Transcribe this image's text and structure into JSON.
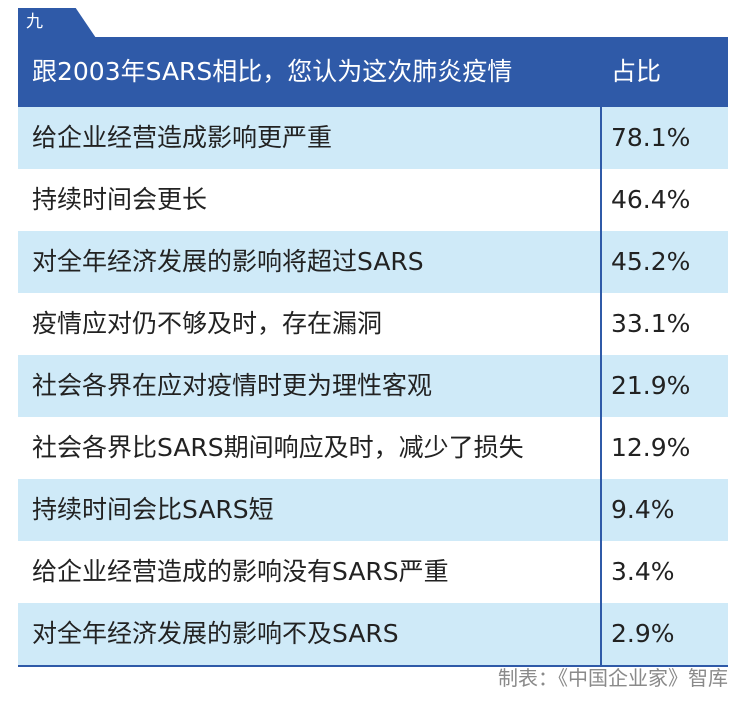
{
  "badge": {
    "label": "九"
  },
  "table": {
    "header_question": "跟2003年SARS相比，您认为这次肺炎疫情",
    "header_value": "占比",
    "rows": [
      {
        "label": "给企业经营造成影响更严重",
        "value": "78.1%"
      },
      {
        "label": "持续时间会更长",
        "value": "46.4%"
      },
      {
        "label": "对全年经济发展的影响将超过SARS",
        "value": "45.2%"
      },
      {
        "label": "疫情应对仍不够及时，存在漏洞",
        "value": "33.1%"
      },
      {
        "label": "社会各界在应对疫情时更为理性客观",
        "value": "21.9%"
      },
      {
        "label": "社会各界比SARS期间响应及时，减少了损失",
        "value": "12.9%"
      },
      {
        "label": "持续时间会比SARS短",
        "value": "9.4%"
      },
      {
        "label": "给企业经营造成的影响没有SARS严重",
        "value": "3.4%"
      },
      {
        "label": "对全年经济发展的影响不及SARS",
        "value": "2.9%"
      }
    ]
  },
  "footer": {
    "source": "制表：《中国企业家》智库"
  },
  "colors": {
    "header_blue": "#2f5aa8",
    "row_shade": "#cfeaf8",
    "text": "#222222",
    "source_gray": "#8a8a8a"
  }
}
